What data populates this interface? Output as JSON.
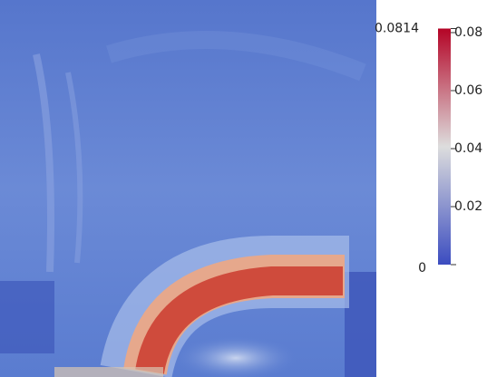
{
  "chart_data": {
    "type": "colorbar",
    "ylim": [
      0,
      0.0814
    ],
    "yticks": [
      0.02,
      0.04,
      0.06,
      0.08
    ],
    "min": 0,
    "max": 0.0814,
    "colormap": [
      "#3b4cc0",
      "#dddddd",
      "#b40426"
    ]
  }
}
